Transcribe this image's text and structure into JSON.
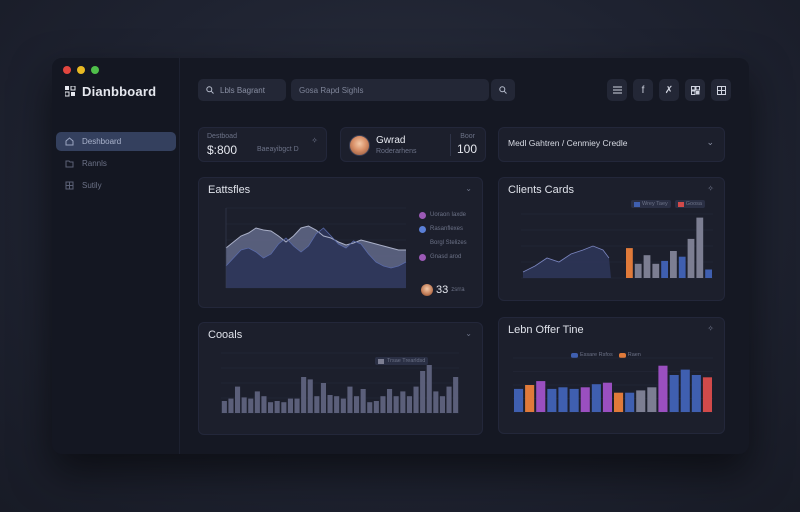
{
  "window": {
    "traffic_lights": [
      "#e2463f",
      "#e8b923",
      "#4fbf4a"
    ]
  },
  "sidebar": {
    "brand": "Dianbboard",
    "items": [
      {
        "label": "Deshboard",
        "icon": "home-icon"
      },
      {
        "label": "Rannls",
        "icon": "folder-icon"
      },
      {
        "label": "Sutily",
        "icon": "grid-icon"
      }
    ]
  },
  "topbar": {
    "search_value": "Lbls Bagrant",
    "search2_value": "Gosa Rapd Sighls",
    "icons": [
      "menu-icon",
      "facebook-icon",
      "x-icon",
      "share-icon",
      "settings-icon"
    ]
  },
  "stats": {
    "card1": {
      "label": "Destboad",
      "value": "$:800",
      "sub": "Baeayibgct D"
    },
    "card2": {
      "name": "Gwrad",
      "sub": "Roderarhens",
      "label": "Boor",
      "value": "100"
    },
    "card3": {
      "label": "Medl Gahtren / Cenmiey Credle"
    }
  },
  "panels": {
    "analytics": {
      "title": "Eattsfles",
      "legend": [
        {
          "label": "Uoraon Iaxde",
          "color": "#9b59b6"
        },
        {
          "label": "Rasanflexes",
          "color": "#5a7fd6"
        },
        {
          "label": "Borgl Stelizes",
          "color": "#9b59b6"
        },
        {
          "label": "Gnasd arod",
          "color": "#9b59b6"
        }
      ],
      "badge": "33",
      "badge_sub": "zsrra"
    },
    "clients": {
      "title": "Clients Cards",
      "legend": [
        "Wrey Taey",
        "Goosa"
      ]
    },
    "counts": {
      "title": "Cooals",
      "legend": "Trsae Trearldsd"
    },
    "offer": {
      "title": "Lebn Offer Tine",
      "legend": [
        "Essare Rsfos",
        "Raen"
      ]
    }
  },
  "colors": {
    "accent": "#34405e",
    "area_dark": "#2d3558",
    "area_light": "#616a8a",
    "bar_blue": "#3f5fb0",
    "bar_gray": "#7c7e92",
    "bar_orange": "#e07a3a",
    "bar_purple": "#9a4fc0",
    "bar_red": "#d14a4a"
  },
  "chart_data": [
    {
      "type": "area",
      "title": "Eattsfles",
      "x": [
        0,
        1,
        2,
        3,
        4,
        5,
        6,
        7,
        8,
        9,
        10,
        11,
        12,
        13,
        14,
        15,
        16,
        17,
        18,
        19,
        20,
        21,
        22,
        23,
        24
      ],
      "series": [
        {
          "values": [
            40,
            46,
            52,
            55,
            60,
            58,
            57,
            52,
            46,
            52,
            60,
            62,
            58,
            52,
            50,
            46,
            43,
            45,
            48,
            46,
            44,
            42,
            40,
            38,
            38
          ]
        },
        {
          "values": [
            22,
            30,
            38,
            40,
            36,
            30,
            34,
            44,
            50,
            42,
            36,
            42,
            54,
            60,
            52,
            44,
            40,
            47,
            44,
            34,
            26,
            22,
            20,
            22,
            26
          ]
        }
      ],
      "ylim": [
        0,
        80
      ]
    },
    {
      "type": "bar",
      "title": "Cooals",
      "values": [
        10,
        12,
        22,
        13,
        12,
        18,
        14,
        9,
        10,
        9,
        12,
        12,
        30,
        28,
        14,
        25,
        15,
        14,
        12,
        22,
        14,
        20,
        9,
        10,
        14,
        20,
        14,
        18,
        14,
        22,
        35,
        40,
        18,
        14,
        22,
        30
      ],
      "ylim": [
        0,
        50
      ]
    },
    {
      "type": "bar",
      "title": "Clients Cards",
      "values": [
        42,
        20,
        32,
        20,
        24,
        38,
        30,
        55,
        85,
        12
      ],
      "ylim": [
        0,
        90
      ]
    },
    {
      "type": "bar",
      "title": "Lebn Offer Tine",
      "values": [
        30,
        35,
        40,
        30,
        32,
        30,
        32,
        36,
        38,
        25,
        25,
        28,
        32,
        60,
        48,
        55,
        48,
        45
      ],
      "ylim": [
        0,
        70
      ]
    }
  ]
}
